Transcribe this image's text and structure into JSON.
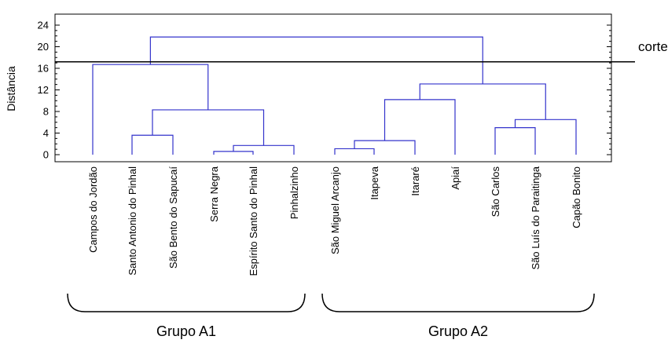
{
  "chart_data": {
    "type": "dendrogram",
    "ylabel": "Distância",
    "ylim": [
      0,
      24
    ],
    "yticks": [
      0,
      4,
      8,
      12,
      16,
      20,
      24
    ],
    "leaves": [
      "Campos do Jordão",
      "Santo Antonio do Pinhal",
      "São Bento do Sapucaí",
      "Serra Negra",
      "Espírito Santo do  Pinhal",
      "Pinhalzinho",
      "São Miguel Arcanjo",
      "Itapeva",
      "Itararé",
      "Apiaí",
      "São Carlos",
      "São Luís do Paraitinga",
      "Capão Bonito"
    ],
    "merges": [
      {
        "left": "leaf:3",
        "right": "leaf:4",
        "height": 0.6
      },
      {
        "left": "leaf:6",
        "right": "leaf:7",
        "height": 1.1
      },
      {
        "left": "node:0",
        "right": "leaf:5",
        "height": 1.7
      },
      {
        "left": "node:1",
        "right": "leaf:8",
        "height": 2.6
      },
      {
        "left": "leaf:1",
        "right": "leaf:2",
        "height": 3.6
      },
      {
        "left": "leaf:10",
        "right": "leaf:11",
        "height": 5.0
      },
      {
        "left": "node:5",
        "right": "leaf:12",
        "height": 6.5
      },
      {
        "left": "node:4",
        "right": "node:2",
        "height": 8.3
      },
      {
        "left": "node:3",
        "right": "leaf:9",
        "height": 10.2
      },
      {
        "left": "node:8",
        "right": "node:6",
        "height": 13.1
      },
      {
        "left": "leaf:0",
        "right": "node:7",
        "height": 16.7
      },
      {
        "left": "node:10",
        "right": "node:9",
        "height": 21.8
      }
    ],
    "cut_height": 17.2,
    "cut_label": "corte",
    "groups": [
      {
        "label": "Grupo A1",
        "first_leaf": 0,
        "last_leaf": 5
      },
      {
        "label": "Grupo A2",
        "first_leaf": 6,
        "last_leaf": 12
      }
    ],
    "colors": {
      "link": "#3333cc",
      "axis": "#000000",
      "cut": "#000000"
    }
  }
}
